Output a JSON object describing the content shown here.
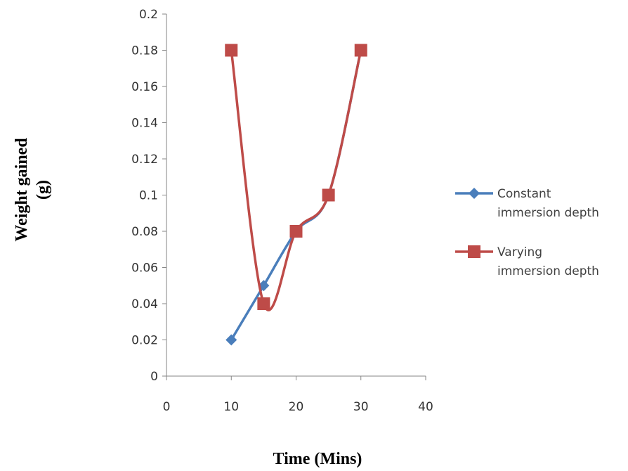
{
  "chart_data": {
    "type": "line",
    "title": "",
    "xlabel": "Time (Mins)",
    "ylabel_lines": [
      "Weight gained",
      "(g)"
    ],
    "xlim": [
      0,
      40
    ],
    "ylim": [
      0,
      0.2
    ],
    "x_ticks": [
      "0",
      "10",
      "20",
      "30",
      "40"
    ],
    "y_ticks": [
      "0",
      "0.02",
      "0.04",
      "0.06",
      "0.08",
      "0.1",
      "0.12",
      "0.14",
      "0.16",
      "0.18",
      "0.2"
    ],
    "grid": false,
    "legend_position": "right",
    "series": [
      {
        "name_lines": [
          "Constant",
          "immersion depth"
        ],
        "color": "#4a7ebb",
        "marker": "diamond",
        "x": [
          10,
          15,
          20,
          25,
          30
        ],
        "y": [
          0.02,
          0.05,
          0.08,
          0.1,
          0.18
        ]
      },
      {
        "name_lines": [
          "Varying",
          "immersion depth"
        ],
        "color": "#be4b48",
        "marker": "square",
        "x": [
          10,
          15,
          20,
          25,
          30
        ],
        "y": [
          0.18,
          0.04,
          0.08,
          0.1,
          0.18
        ]
      }
    ]
  }
}
